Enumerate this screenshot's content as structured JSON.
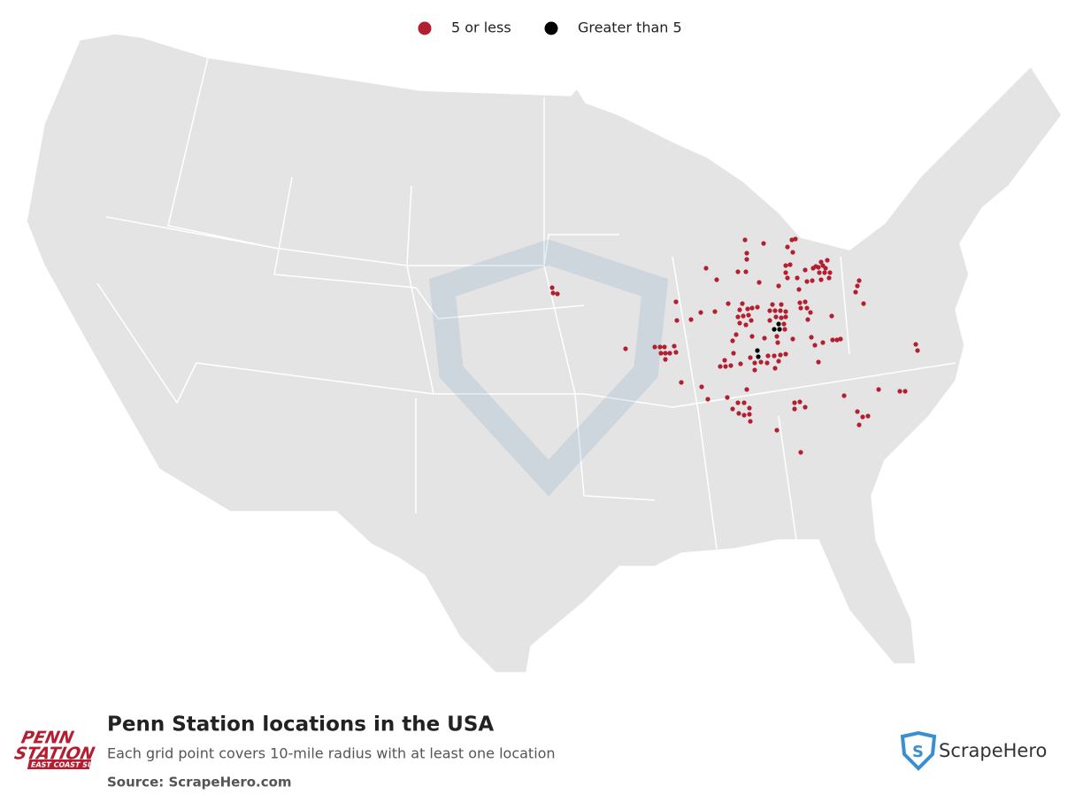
{
  "legend": [
    {
      "label": "5 or less",
      "color": "#b31f30"
    },
    {
      "label": "Greater than 5",
      "color": "#000000"
    }
  ],
  "title": "Penn Station locations in the USA",
  "subtitle": "Each grid point covers 10-mile radius with at least one location",
  "source": "Source: ScrapeHero.com",
  "brand_logo": {
    "line1": "PENN",
    "line2": "STATION",
    "tagline": "EAST COAST SUBS"
  },
  "publisher_logo": "ScrapeHero"
}
